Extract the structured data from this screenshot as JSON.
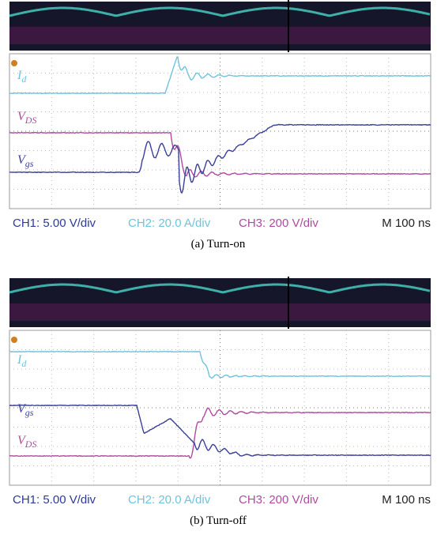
{
  "panels": [
    {
      "labels": {
        "current": {
          "main": "I",
          "sub": "d"
        },
        "drain_source": {
          "main": "V",
          "sub": "DS"
        },
        "gate_source": {
          "main": "V",
          "sub": "gs"
        }
      },
      "channels": [
        "CH1: 5.00 V/div",
        "CH2: 20.0 A/div",
        "CH3: 200 V/div"
      ],
      "timebase": "M 100 ns",
      "caption": "(a) Turn-on"
    },
    {
      "labels": {
        "current": {
          "main": "I",
          "sub": "d"
        },
        "drain_source": {
          "main": "V",
          "sub": "DS"
        },
        "gate_source": {
          "main": "V",
          "sub": "gs"
        }
      },
      "channels": [
        "CH1: 5.00 V/div",
        "CH2: 20.0 A/div",
        "CH3: 200 V/div"
      ],
      "timebase": "M 100 ns",
      "caption": "(b) Turn-off"
    }
  ]
}
